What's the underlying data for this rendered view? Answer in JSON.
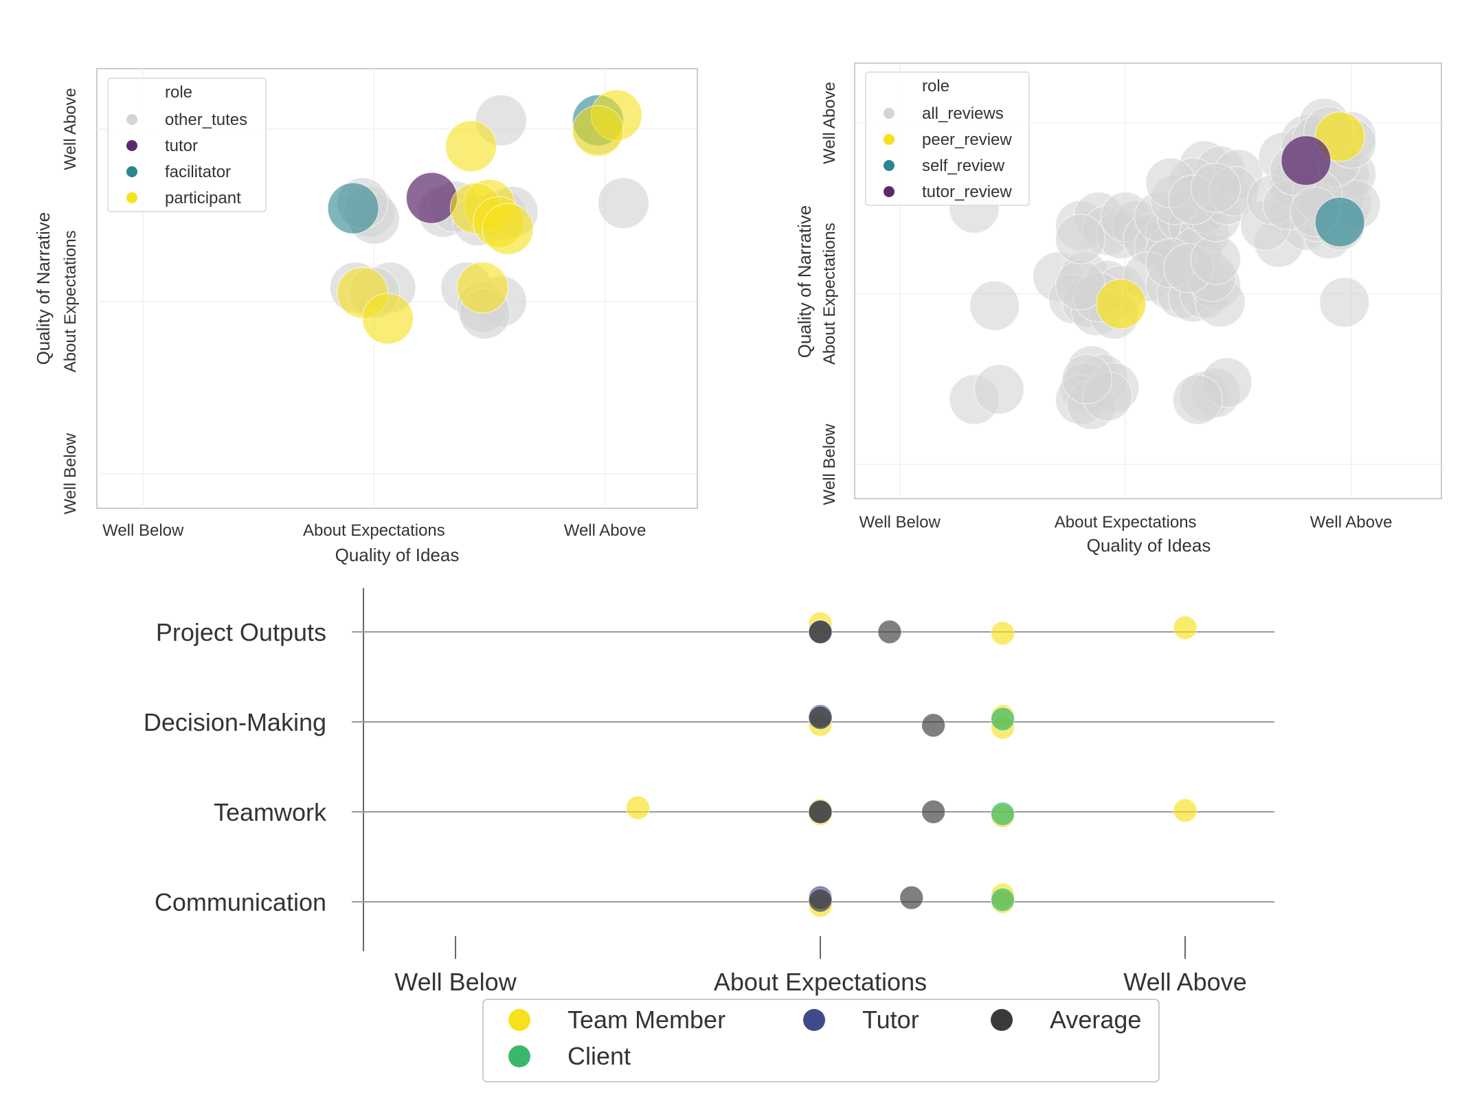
{
  "colors": {
    "gray": "#d4d4d4",
    "purple": "#5b2a6e",
    "teal": "#2a8591",
    "yellow": "#f7e11c",
    "yellowLight": "#f2e37a",
    "navy": "#3f4a8a",
    "green": "#39b86c",
    "dark": "#3a3a3a",
    "frame": "#cccccc",
    "axisLine": "#888888"
  },
  "chart_data": [
    {
      "id": "left",
      "type": "scatter",
      "title": "",
      "xlabel": "Quality of Ideas",
      "ylabel": "Quality of Narrative",
      "xlim": [
        -0.2,
        2.4
      ],
      "ylim": [
        -0.2,
        2.35
      ],
      "xticks": [
        {
          "v": 0,
          "label": "Well Below"
        },
        {
          "v": 1,
          "label": "About Expectations"
        },
        {
          "v": 2,
          "label": "Well Above"
        }
      ],
      "yticks": [
        {
          "v": 0,
          "label": "Well Below"
        },
        {
          "v": 1,
          "label": "About Expectations"
        },
        {
          "v": 2,
          "label": "Well Above"
        }
      ],
      "legend": {
        "title": "role",
        "position": "top-left",
        "entries": [
          {
            "label": "other_tutes",
            "color": "#d4d4d4"
          },
          {
            "label": "tutor",
            "color": "#5b2a6e"
          },
          {
            "label": "facilitator",
            "color": "#2a8591"
          },
          {
            "label": "participant",
            "color": "#f7e11c"
          }
        ]
      },
      "series": [
        {
          "name": "other_tutes",
          "color": "#d4d4d4",
          "opacity": 0.65,
          "points": [
            [
              1.55,
              2.05
            ],
            [
              2.08,
              1.57
            ],
            [
              0.98,
              1.52
            ],
            [
              1.0,
              1.48
            ],
            [
              0.95,
              1.57
            ],
            [
              1.3,
              1.52
            ],
            [
              1.35,
              1.55
            ],
            [
              1.45,
              1.47
            ],
            [
              1.55,
              1.5
            ],
            [
              1.6,
              1.52
            ],
            [
              0.92,
              1.08
            ],
            [
              1.07,
              1.08
            ],
            [
              1.4,
              1.08
            ],
            [
              1.55,
              1.0
            ],
            [
              1.47,
              0.97
            ],
            [
              1.48,
              0.93
            ],
            [
              1.0,
              1.05
            ],
            [
              1.97,
              2.0
            ]
          ]
        },
        {
          "name": "tutor",
          "color": "#5b2a6e",
          "opacity": 0.7,
          "points": [
            [
              1.25,
              1.6
            ]
          ]
        },
        {
          "name": "facilitator",
          "color": "#2a8591",
          "opacity": 0.6,
          "points": [
            [
              0.91,
              1.54
            ],
            [
              1.97,
              2.05
            ]
          ]
        },
        {
          "name": "participant",
          "color": "#f7e11c",
          "opacity": 0.6,
          "points": [
            [
              1.42,
              1.9
            ],
            [
              2.05,
              2.08
            ],
            [
              1.97,
              1.99
            ],
            [
              1.5,
              1.56
            ],
            [
              1.44,
              1.54
            ],
            [
              1.54,
              1.46
            ],
            [
              1.58,
              1.42
            ],
            [
              0.95,
              1.05
            ],
            [
              1.06,
              0.9
            ],
            [
              1.47,
              1.08
            ]
          ]
        }
      ]
    },
    {
      "id": "right",
      "type": "scatter",
      "title": "",
      "xlabel": "Quality of Ideas",
      "ylabel": "Quality of Narrative",
      "xlim": [
        -0.2,
        2.4
      ],
      "ylim": [
        -0.2,
        2.35
      ],
      "xticks": [
        {
          "v": 0,
          "label": "Well Below"
        },
        {
          "v": 1,
          "label": "About Expectations"
        },
        {
          "v": 2,
          "label": "Well Above"
        }
      ],
      "yticks": [
        {
          "v": 0,
          "label": "Well Below"
        },
        {
          "v": 1,
          "label": "About Expectations"
        },
        {
          "v": 2,
          "label": "Well Above"
        }
      ],
      "legend": {
        "title": "role",
        "position": "top-left",
        "entries": [
          {
            "label": "all_reviews",
            "color": "#d4d4d4"
          },
          {
            "label": "peer_review",
            "color": "#f7e11c"
          },
          {
            "label": "self_review",
            "color": "#2a8591"
          },
          {
            "label": "tutor_review",
            "color": "#5b2a6e"
          }
        ]
      },
      "series": [
        {
          "name": "all_reviews",
          "color": "#d4d4d4",
          "opacity": 0.6,
          "points": [
            [
              0.33,
              1.5
            ],
            [
              0.42,
              0.93
            ],
            [
              0.33,
              0.38
            ],
            [
              0.44,
              0.44
            ],
            [
              0.7,
              1.1
            ],
            [
              0.82,
              1.1
            ],
            [
              0.92,
              1.05
            ],
            [
              0.98,
              1.02
            ],
            [
              0.77,
              0.97
            ],
            [
              0.83,
              0.95
            ],
            [
              0.87,
              0.9
            ],
            [
              0.95,
              0.88
            ],
            [
              0.88,
              0.98
            ],
            [
              0.8,
              1.05
            ],
            [
              0.85,
              0.55
            ],
            [
              0.9,
              0.5
            ],
            [
              0.82,
              0.45
            ],
            [
              0.95,
              0.45
            ],
            [
              0.8,
              0.38
            ],
            [
              0.85,
              0.35
            ],
            [
              0.92,
              0.4
            ],
            [
              0.83,
              0.5
            ],
            [
              0.8,
              1.4
            ],
            [
              0.88,
              1.45
            ],
            [
              0.92,
              1.37
            ],
            [
              0.98,
              1.35
            ],
            [
              1.05,
              1.4
            ],
            [
              0.8,
              1.32
            ],
            [
              1.0,
              1.45
            ],
            [
              1.1,
              1.32
            ],
            [
              1.15,
              1.28
            ],
            [
              1.2,
              1.35
            ],
            [
              1.2,
              1.25
            ],
            [
              1.15,
              1.45
            ],
            [
              1.25,
              1.45
            ],
            [
              1.3,
              1.4
            ],
            [
              1.35,
              1.35
            ],
            [
              1.32,
              1.25
            ],
            [
              1.1,
              1.1
            ],
            [
              1.2,
              1.05
            ],
            [
              1.25,
              1.0
            ],
            [
              1.3,
              0.98
            ],
            [
              1.35,
              1.0
            ],
            [
              1.4,
              1.05
            ],
            [
              1.42,
              0.95
            ],
            [
              1.38,
              1.1
            ],
            [
              1.2,
              1.18
            ],
            [
              1.28,
              1.15
            ],
            [
              1.4,
              1.2
            ],
            [
              1.35,
              1.5
            ],
            [
              1.4,
              1.45
            ],
            [
              1.45,
              1.55
            ],
            [
              1.35,
              1.75
            ],
            [
              1.42,
              1.72
            ],
            [
              1.5,
              1.7
            ],
            [
              1.3,
              1.65
            ],
            [
              1.22,
              1.55
            ],
            [
              1.2,
              1.65
            ],
            [
              1.3,
              1.55
            ],
            [
              1.48,
              1.6
            ],
            [
              1.4,
              1.62
            ],
            [
              1.35,
              0.4
            ],
            [
              1.4,
              0.42
            ],
            [
              1.45,
              0.48
            ],
            [
              1.32,
              0.38
            ],
            [
              1.8,
              1.9
            ],
            [
              1.85,
              1.75
            ],
            [
              1.9,
              1.8
            ],
            [
              1.95,
              1.9
            ],
            [
              1.88,
              2.0
            ],
            [
              1.92,
              1.65
            ],
            [
              1.95,
              1.6
            ],
            [
              1.97,
              1.7
            ],
            [
              1.85,
              1.65
            ],
            [
              1.75,
              1.58
            ],
            [
              1.7,
              1.8
            ],
            [
              1.68,
              1.3
            ],
            [
              1.8,
              1.4
            ],
            [
              1.9,
              1.35
            ],
            [
              1.95,
              1.45
            ],
            [
              1.85,
              1.45
            ],
            [
              1.75,
              1.65
            ],
            [
              1.62,
              1.4
            ],
            [
              1.65,
              1.55
            ],
            [
              1.72,
              1.52
            ],
            [
              1.98,
              1.53
            ],
            [
              1.95,
              1.55
            ],
            [
              1.9,
              1.5
            ],
            [
              1.87,
              1.55
            ],
            [
              1.88,
              1.82
            ],
            [
              1.94,
              1.88
            ],
            [
              2.0,
              1.7
            ],
            [
              2.02,
              1.52
            ],
            [
              1.95,
              1.4
            ],
            [
              1.8,
              1.85
            ],
            [
              1.85,
              1.9
            ],
            [
              1.93,
              1.77
            ],
            [
              2.0,
              1.92
            ],
            [
              1.85,
              1.58
            ],
            [
              1.75,
              1.72
            ],
            [
              2.0,
              1.88
            ],
            [
              1.9,
              1.95
            ],
            [
              1.84,
              1.48
            ],
            [
              1.97,
              0.95
            ]
          ]
        },
        {
          "name": "peer_review",
          "color": "#f7e11c",
          "opacity": 0.7,
          "points": [
            [
              0.98,
              0.94
            ],
            [
              1.95,
              1.92
            ]
          ]
        },
        {
          "name": "self_review",
          "color": "#2a8591",
          "opacity": 0.65,
          "points": [
            [
              1.95,
              1.42
            ]
          ]
        },
        {
          "name": "tutor_review",
          "color": "#5b2a6e",
          "opacity": 0.75,
          "points": [
            [
              1.8,
              1.78
            ]
          ]
        }
      ]
    },
    {
      "id": "bottom",
      "type": "scatter",
      "title": "",
      "xlabel": "",
      "ylabel": "",
      "xlim": [
        -0.25,
        2.25
      ],
      "xticks": [
        {
          "v": 0,
          "label": "Well Below"
        },
        {
          "v": 1,
          "label": "About Expectations"
        },
        {
          "v": 2,
          "label": "Well Above"
        }
      ],
      "categories": [
        "Project Outputs",
        "Decision-Making",
        "Teamwork",
        "Communication"
      ],
      "legend": {
        "position": "bottom-center",
        "entries": [
          {
            "label": "Team Member",
            "color": "#f7e11c"
          },
          {
            "label": "Tutor",
            "color": "#3f4a8a"
          },
          {
            "label": "Average",
            "color": "#3a3a3a"
          },
          {
            "label": "Client",
            "color": "#39b86c"
          }
        ]
      },
      "series": [
        {
          "name": "Team Member",
          "color": "#f7e11c",
          "opacity": 0.65,
          "points": [
            [
              "Project Outputs",
              1.0,
              0.12
            ],
            [
              "Project Outputs",
              1.0,
              0.0
            ],
            [
              "Project Outputs",
              1.5,
              -0.02
            ],
            [
              "Project Outputs",
              2.0,
              0.06
            ],
            [
              "Decision-Making",
              1.0,
              -0.04
            ],
            [
              "Decision-Making",
              1.5,
              0.08
            ],
            [
              "Decision-Making",
              1.5,
              -0.08
            ],
            [
              "Teamwork",
              0.5,
              0.06
            ],
            [
              "Teamwork",
              1.0,
              0.02
            ],
            [
              "Teamwork",
              1.0,
              -0.03
            ],
            [
              "Teamwork",
              1.5,
              -0.06
            ],
            [
              "Teamwork",
              2.0,
              0.02
            ],
            [
              "Communication",
              1.0,
              -0.05
            ],
            [
              "Communication",
              1.5,
              0.1
            ],
            [
              "Communication",
              1.5,
              0.0
            ]
          ]
        },
        {
          "name": "Tutor",
          "color": "#3f4a8a",
          "opacity": 0.7,
          "points": [
            [
              "Project Outputs",
              1.0,
              0.0
            ],
            [
              "Decision-Making",
              1.0,
              0.08
            ],
            [
              "Teamwork",
              1.0,
              0.0
            ],
            [
              "Communication",
              1.0,
              0.06
            ]
          ]
        },
        {
          "name": "Client",
          "color": "#39b86c",
          "opacity": 0.7,
          "points": [
            [
              "Decision-Making",
              1.5,
              0.04
            ],
            [
              "Teamwork",
              1.5,
              -0.03
            ],
            [
              "Communication",
              1.5,
              0.03
            ]
          ]
        },
        {
          "name": "Average",
          "color": "#3a3a3a",
          "opacity": 0.65,
          "points": [
            [
              "Project Outputs",
              1.0,
              0.0
            ],
            [
              "Project Outputs",
              1.19,
              0.0
            ],
            [
              "Decision-Making",
              1.0,
              0.06
            ],
            [
              "Decision-Making",
              1.31,
              -0.05
            ],
            [
              "Teamwork",
              1.0,
              0.0
            ],
            [
              "Teamwork",
              1.31,
              0.0
            ],
            [
              "Communication",
              1.0,
              0.02
            ],
            [
              "Communication",
              1.25,
              0.06
            ]
          ]
        }
      ]
    }
  ]
}
